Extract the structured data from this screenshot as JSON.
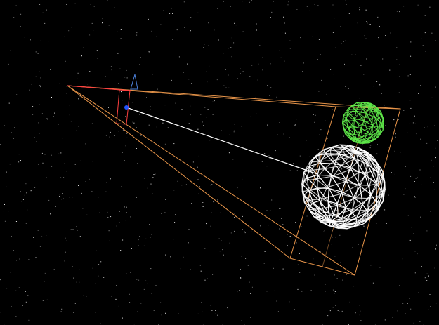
{
  "scene": {
    "background_color": "#000000",
    "star_color": "#ffffff",
    "frustum_color": "#e8954a",
    "frustum_top_edge_color": "#ff4040",
    "near_plane_color": "#4a7fd8",
    "camera_marker_color": "#2255ff",
    "sight_line_color": "#ffffff",
    "large_sphere": {
      "color": "#ffffff",
      "mesh": "geodesic-wireframe"
    },
    "small_sphere": {
      "color": "#5fe84a",
      "mesh": "geodesic-wireframe"
    }
  }
}
